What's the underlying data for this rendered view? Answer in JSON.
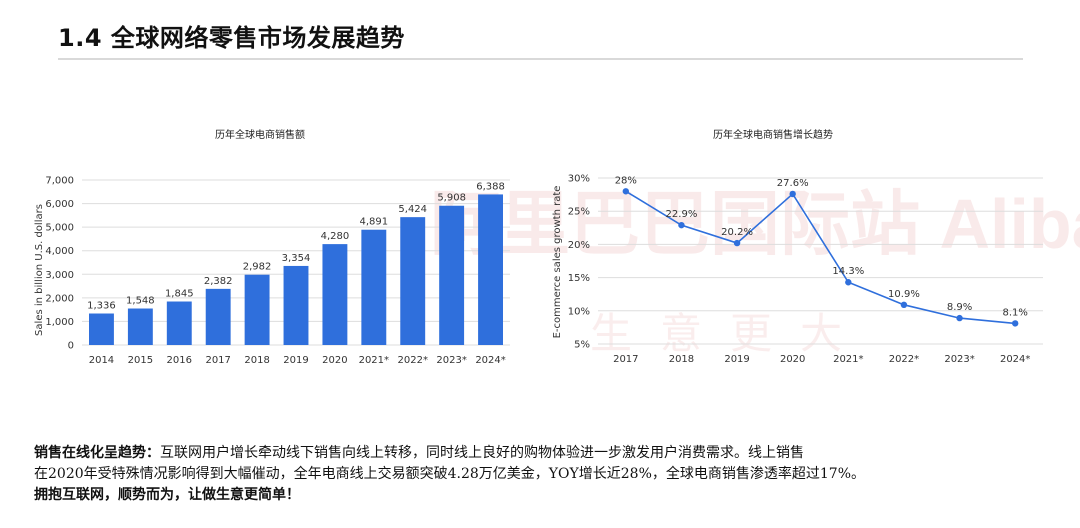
{
  "page": {
    "title": "1.4 全球网络零售市场发展趋势"
  },
  "watermark": {
    "text": "阿里巴巴国际站 Alibaba.com",
    "text2": "生意更大"
  },
  "chart_data": [
    {
      "type": "bar",
      "title": "历年全球电商销售额",
      "xlabel": "",
      "ylabel": "Sales in billion U.S. dollars",
      "categories": [
        "2014",
        "2015",
        "2016",
        "2017",
        "2018",
        "2019",
        "2020",
        "2021*",
        "2022*",
        "2023*",
        "2024*"
      ],
      "values": [
        1336,
        1548,
        1845,
        2382,
        2982,
        3354,
        4280,
        4891,
        5424,
        5908,
        6388
      ],
      "value_labels": [
        "1,336",
        "1,548",
        "1,845",
        "2,382",
        "2,982",
        "3,354",
        "4,280",
        "4,891",
        "5,424",
        "5,908",
        "6,388"
      ],
      "ylim": [
        0,
        7000
      ],
      "yticks": [
        0,
        1000,
        2000,
        3000,
        4000,
        5000,
        6000,
        7000
      ],
      "ytick_labels": [
        "0",
        "1,000",
        "2,000",
        "3,000",
        "4,000",
        "5,000",
        "6,000",
        "7,000"
      ],
      "color": "#2f6fdc",
      "grid": true
    },
    {
      "type": "line",
      "title": "历年全球电商销售增长趋势",
      "xlabel": "",
      "ylabel": "E-commerce sales growth rate",
      "categories": [
        "2017",
        "2018",
        "2019",
        "2020",
        "2021*",
        "2022*",
        "2023*",
        "2024*"
      ],
      "values": [
        28,
        22.9,
        20.2,
        27.6,
        14.3,
        10.9,
        8.9,
        8.1
      ],
      "value_labels": [
        "28%",
        "22.9%",
        "20.2%",
        "27.6%",
        "14.3%",
        "10.9%",
        "8.9%",
        "8.1%"
      ],
      "ylim": [
        5,
        30
      ],
      "yticks": [
        5,
        10,
        15,
        20,
        25,
        30
      ],
      "ytick_labels": [
        "5%",
        "10%",
        "15%",
        "20%",
        "25%",
        "30%"
      ],
      "color": "#2f6fdc",
      "grid": true
    }
  ],
  "summary": {
    "lead": "销售在线化呈趋势：",
    "line1": "互联网用户增长牵动线下销售向线上转移，同时线上良好的购物体验进一步激发用户消费需求。线上销售",
    "line2": "在2020年受特殊情况影响得到大幅催动，全年电商线上交易额突破4.28万亿美金，YOY增长近28%，全球电商销售渗透率超过17%。",
    "line3": "拥抱互联网，顺势而为，让做生意更简单！"
  }
}
